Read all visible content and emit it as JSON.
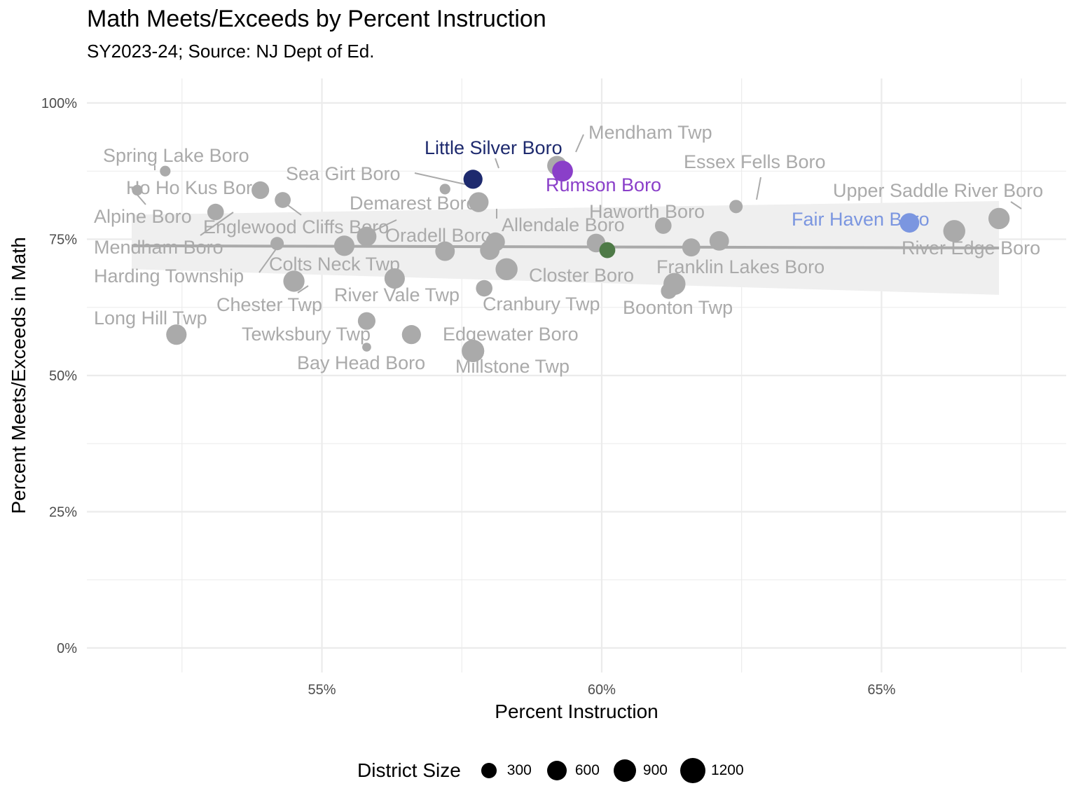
{
  "chart_data": {
    "type": "scatter",
    "title": "Math Meets/Exceeds by Percent Instruction",
    "subtitle": "SY2023-24; Source: NJ Dept of Ed.",
    "xlabel": "Percent Instruction",
    "ylabel": "Percent Meets/Exceeds in Math",
    "xlim": [
      50.8,
      68.3
    ],
    "ylim": [
      -4.5,
      104.5
    ],
    "x_ticks": [
      {
        "value": 55,
        "label": "55%"
      },
      {
        "value": 60,
        "label": "60%"
      },
      {
        "value": 65,
        "label": "65%"
      }
    ],
    "y_ticks": [
      {
        "value": 0,
        "label": "0%"
      },
      {
        "value": 25,
        "label": "25%"
      },
      {
        "value": 50,
        "label": "50%"
      },
      {
        "value": 75,
        "label": "75%"
      },
      {
        "value": 100,
        "label": "100%"
      }
    ],
    "grid": true,
    "colors": {
      "default": "#aaaaaa",
      "little_silver": "#1e2a6e",
      "rumson": "#8a3fc9",
      "fair_haven": "#7b96e0",
      "highlight_green": "#4e7a47",
      "trend": "#aaaaaa",
      "band": "#efefef"
    },
    "trend": {
      "x": [
        51.6,
        67.1
      ],
      "y": [
        73.8,
        73.4
      ],
      "band_low": [
        69.5,
        64.8
      ],
      "band_high": [
        79.5,
        82.0
      ]
    },
    "points": [
      {
        "name": "Spring Lake Boro",
        "x": 52.2,
        "y": 87.5,
        "size": 150,
        "color": "#aaaaaa"
      },
      {
        "name": "Ho Ho Kus Boro",
        "x": 53.9,
        "y": 84.0,
        "size": 650,
        "color": "#aaaaaa"
      },
      {
        "name": "Alpine Boro",
        "x": 51.7,
        "y": 84.0,
        "size": 150,
        "color": "#aaaaaa"
      },
      {
        "name": "",
        "x": 54.3,
        "y": 82.2,
        "size": 500,
        "color": "#aaaaaa"
      },
      {
        "name": "Englewood Cliffs Boro",
        "x": 53.1,
        "y": 80.0,
        "size": 550,
        "color": "#aaaaaa"
      },
      {
        "name": "Mendham Boro",
        "x": 54.2,
        "y": 74.2,
        "size": 300,
        "color": "#aaaaaa"
      },
      {
        "name": "Harding Township",
        "x": 55.4,
        "y": 73.8,
        "size": 950,
        "color": "#aaaaaa"
      },
      {
        "name": "Sea Girt Boro",
        "x": 57.2,
        "y": 84.2,
        "size": 150,
        "color": "#aaaaaa"
      },
      {
        "name": "Oradell Boro",
        "x": 55.8,
        "y": 75.5,
        "size": 850,
        "color": "#aaaaaa"
      },
      {
        "name": "Little Silver Boro",
        "x": 57.7,
        "y": 86.0,
        "size": 800,
        "color": "#1e2a6e"
      },
      {
        "name": "Demarest Boro",
        "x": 57.8,
        "y": 81.8,
        "size": 900,
        "color": "#aaaaaa"
      },
      {
        "name": "",
        "x": 57.2,
        "y": 72.8,
        "size": 850,
        "color": "#aaaaaa"
      },
      {
        "name": "Allendale Boro",
        "x": 58.1,
        "y": 74.5,
        "size": 800,
        "color": "#aaaaaa"
      },
      {
        "name": "",
        "x": 58.0,
        "y": 73.0,
        "size": 850,
        "color": "#aaaaaa"
      },
      {
        "name": "Closter Boro",
        "x": 58.3,
        "y": 69.5,
        "size": 1150,
        "color": "#aaaaaa"
      },
      {
        "name": "Mendham Twp",
        "x": 59.2,
        "y": 88.5,
        "size": 850,
        "color": "#aaaaaa"
      },
      {
        "name": "Rumson Boro",
        "x": 59.3,
        "y": 87.5,
        "size": 1000,
        "color": "#8a3fc9"
      },
      {
        "name": "",
        "x": 59.9,
        "y": 74.3,
        "size": 750,
        "color": "#aaaaaa"
      },
      {
        "name": "",
        "x": 60.1,
        "y": 73.0,
        "size": 500,
        "color": "#4e7a47"
      },
      {
        "name": "Haworth Boro",
        "x": 61.1,
        "y": 77.5,
        "size": 550,
        "color": "#aaaaaa"
      },
      {
        "name": "Essex Fells Boro",
        "x": 62.4,
        "y": 81.0,
        "size": 300,
        "color": "#aaaaaa"
      },
      {
        "name": "Franklin Lakes Boro",
        "x": 62.1,
        "y": 74.7,
        "size": 850,
        "color": "#aaaaaa"
      },
      {
        "name": "",
        "x": 61.6,
        "y": 73.5,
        "size": 700,
        "color": "#aaaaaa"
      },
      {
        "name": "Boonton Twp",
        "x": 61.3,
        "y": 66.8,
        "size": 1150,
        "color": "#aaaaaa"
      },
      {
        "name": "",
        "x": 61.2,
        "y": 65.5,
        "size": 500,
        "color": "#aaaaaa"
      },
      {
        "name": "Colts Neck Twp",
        "x": 54.5,
        "y": 67.3,
        "size": 1050,
        "color": "#aaaaaa"
      },
      {
        "name": "River Vale Twp",
        "x": 56.3,
        "y": 67.8,
        "size": 950,
        "color": "#aaaaaa"
      },
      {
        "name": "Cranbury Twp",
        "x": 57.9,
        "y": 66.0,
        "size": 550,
        "color": "#aaaaaa"
      },
      {
        "name": "Long Hill Twp",
        "x": 52.4,
        "y": 57.5,
        "size": 950,
        "color": "#aaaaaa"
      },
      {
        "name": "Chester Twp",
        "x": 55.8,
        "y": 60.0,
        "size": 650,
        "color": "#aaaaaa"
      },
      {
        "name": "Tewksbury Twp",
        "x": 56.6,
        "y": 57.5,
        "size": 800,
        "color": "#aaaaaa"
      },
      {
        "name": "Bay Head Boro",
        "x": 55.8,
        "y": 55.2,
        "size": 80,
        "color": "#aaaaaa"
      },
      {
        "name": "Millstone Twp",
        "x": 57.7,
        "y": 54.5,
        "size": 1200,
        "color": "#aaaaaa"
      },
      {
        "name": "Edgewater Boro",
        "x": 57.7,
        "y": 54.5,
        "size": 1200,
        "color": "#aaaaaa"
      },
      {
        "name": "Upper Saddle River Boro",
        "x": 67.1,
        "y": 78.8,
        "size": 1050,
        "color": "#aaaaaa"
      },
      {
        "name": "River Edge Boro",
        "x": 66.3,
        "y": 76.5,
        "size": 1150,
        "color": "#aaaaaa"
      },
      {
        "name": "Fair Haven Boro",
        "x": 65.5,
        "y": 78.0,
        "size": 850,
        "color": "#7b96e0"
      }
    ],
    "legend": {
      "title": "District Size",
      "placement": "bottom",
      "entries": [
        {
          "label": "300",
          "size": 300
        },
        {
          "label": "600",
          "size": 600
        },
        {
          "label": "900",
          "size": 900
        },
        {
          "label": "1200",
          "size": 1200
        }
      ]
    }
  }
}
